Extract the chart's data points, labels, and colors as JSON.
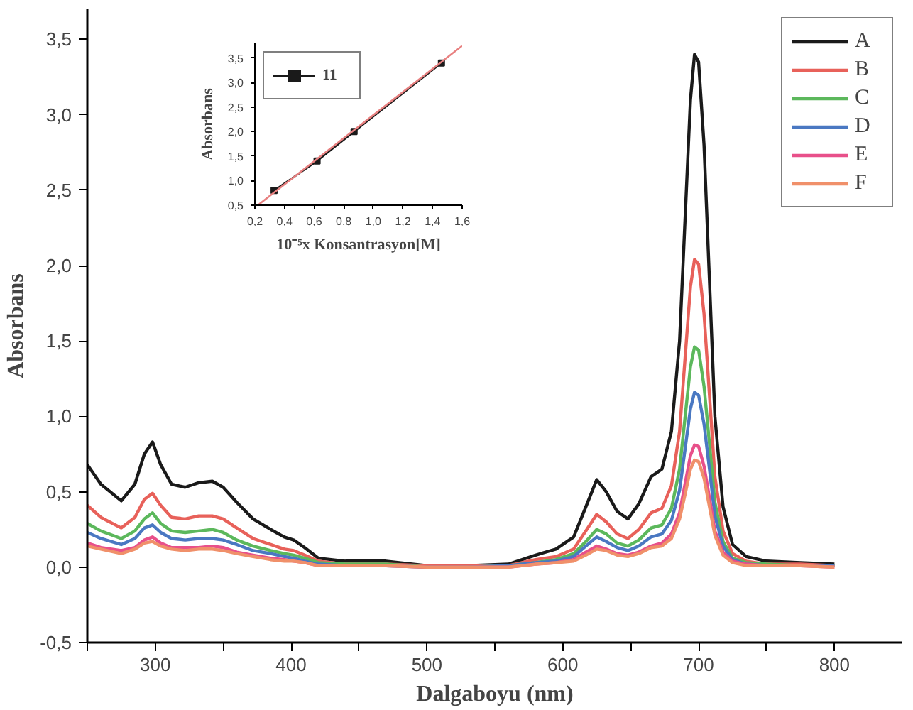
{
  "chart_data": [
    {
      "type": "line",
      "xlabel": "Dalgaboyu (nm)",
      "ylabel": "Absorbans",
      "xlim": [
        250,
        850
      ],
      "ylim": [
        -0.5,
        3.7
      ],
      "xticks": [
        {
          "value": 250,
          "label": null
        },
        300,
        {
          "value": 350,
          "label": null
        },
        400,
        {
          "value": 450,
          "label": null
        },
        500,
        {
          "value": 550,
          "label": null
        },
        600,
        {
          "value": 650,
          "label": null
        },
        700,
        {
          "value": 750,
          "label": null
        },
        800
      ],
      "yticks": [
        {
          "value": -0.5,
          "label": "-0,5"
        },
        {
          "value": 0,
          "label": "0,0"
        },
        {
          "value": 0.5,
          "label": "0,5"
        },
        {
          "value": 1,
          "label": "1,0"
        },
        {
          "value": 1.5,
          "label": "1,5"
        },
        {
          "value": 2,
          "label": "2,0"
        },
        {
          "value": 2.5,
          "label": "2,5"
        },
        {
          "value": 3,
          "label": "3,0"
        },
        {
          "value": 3.5,
          "label": "3,5"
        }
      ],
      "x": [
        250,
        260,
        275,
        285,
        292,
        298,
        304,
        312,
        322,
        332,
        342,
        350,
        360,
        372,
        385,
        395,
        402,
        410,
        420,
        440,
        470,
        500,
        530,
        560,
        580,
        595,
        608,
        617,
        625,
        632,
        640,
        648,
        656,
        665,
        673,
        680,
        686,
        690,
        694,
        697,
        700,
        704,
        708,
        712,
        718,
        725,
        735,
        750,
        775,
        800
      ],
      "legend": "top right",
      "grid": false,
      "marker": "none",
      "line_style": "solid",
      "series": [
        {
          "name": "A",
          "color": "#1a1a1a",
          "values": [
            0.68,
            0.55,
            0.44,
            0.55,
            0.75,
            0.83,
            0.68,
            0.55,
            0.53,
            0.56,
            0.57,
            0.53,
            0.43,
            0.32,
            0.25,
            0.2,
            0.18,
            0.13,
            0.06,
            0.04,
            0.04,
            0.01,
            0.01,
            0.02,
            0.08,
            0.12,
            0.2,
            0.4,
            0.58,
            0.5,
            0.37,
            0.32,
            0.42,
            0.6,
            0.65,
            0.9,
            1.5,
            2.3,
            3.1,
            3.4,
            3.35,
            2.8,
            1.9,
            1.0,
            0.4,
            0.15,
            0.07,
            0.04,
            0.03,
            0.02
          ]
        },
        {
          "name": "B",
          "color": "#e8615a",
          "values": [
            0.41,
            0.33,
            0.26,
            0.33,
            0.45,
            0.49,
            0.41,
            0.33,
            0.32,
            0.34,
            0.34,
            0.32,
            0.26,
            0.19,
            0.15,
            0.12,
            0.11,
            0.08,
            0.04,
            0.02,
            0.02,
            0.01,
            0.01,
            0.01,
            0.05,
            0.07,
            0.12,
            0.24,
            0.35,
            0.3,
            0.22,
            0.19,
            0.25,
            0.36,
            0.39,
            0.54,
            0.9,
            1.38,
            1.86,
            2.04,
            2.01,
            1.68,
            1.14,
            0.6,
            0.24,
            0.09,
            0.04,
            0.02,
            0.02,
            0.01
          ]
        },
        {
          "name": "C",
          "color": "#5cb85c",
          "values": [
            0.29,
            0.24,
            0.19,
            0.24,
            0.32,
            0.36,
            0.29,
            0.24,
            0.23,
            0.24,
            0.25,
            0.23,
            0.18,
            0.14,
            0.11,
            0.09,
            0.08,
            0.06,
            0.03,
            0.02,
            0.02,
            0.0,
            0.0,
            0.01,
            0.03,
            0.05,
            0.09,
            0.17,
            0.25,
            0.22,
            0.16,
            0.14,
            0.18,
            0.26,
            0.28,
            0.39,
            0.65,
            0.99,
            1.33,
            1.46,
            1.44,
            1.2,
            0.82,
            0.43,
            0.17,
            0.06,
            0.03,
            0.02,
            0.01,
            0.01
          ]
        },
        {
          "name": "D",
          "color": "#4a78c2",
          "values": [
            0.23,
            0.19,
            0.15,
            0.19,
            0.26,
            0.28,
            0.23,
            0.19,
            0.18,
            0.19,
            0.19,
            0.18,
            0.15,
            0.11,
            0.09,
            0.07,
            0.06,
            0.04,
            0.02,
            0.01,
            0.01,
            0.0,
            0.0,
            0.01,
            0.03,
            0.04,
            0.07,
            0.14,
            0.2,
            0.17,
            0.13,
            0.11,
            0.14,
            0.2,
            0.22,
            0.31,
            0.51,
            0.78,
            1.05,
            1.16,
            1.14,
            0.95,
            0.65,
            0.34,
            0.14,
            0.05,
            0.02,
            0.01,
            0.01,
            0.01
          ]
        },
        {
          "name": "E",
          "color": "#e8508a",
          "values": [
            0.16,
            0.13,
            0.11,
            0.13,
            0.18,
            0.2,
            0.16,
            0.13,
            0.13,
            0.13,
            0.14,
            0.13,
            0.1,
            0.08,
            0.06,
            0.05,
            0.04,
            0.03,
            0.01,
            0.01,
            0.01,
            0.0,
            0.0,
            0.0,
            0.02,
            0.03,
            0.05,
            0.1,
            0.14,
            0.12,
            0.09,
            0.08,
            0.1,
            0.14,
            0.16,
            0.22,
            0.36,
            0.55,
            0.74,
            0.81,
            0.8,
            0.67,
            0.46,
            0.24,
            0.1,
            0.04,
            0.02,
            0.01,
            0.01,
            0.0
          ]
        },
        {
          "name": "F",
          "color": "#f0906a",
          "values": [
            0.14,
            0.12,
            0.09,
            0.12,
            0.16,
            0.17,
            0.14,
            0.12,
            0.11,
            0.12,
            0.12,
            0.11,
            0.09,
            0.07,
            0.05,
            0.04,
            0.04,
            0.03,
            0.01,
            0.01,
            0.01,
            0.0,
            0.0,
            0.0,
            0.02,
            0.03,
            0.04,
            0.08,
            0.12,
            0.11,
            0.08,
            0.07,
            0.09,
            0.13,
            0.14,
            0.19,
            0.32,
            0.48,
            0.65,
            0.71,
            0.7,
            0.59,
            0.4,
            0.21,
            0.08,
            0.03,
            0.01,
            0.01,
            0.01,
            0.0
          ]
        }
      ]
    },
    {
      "type": "line",
      "xlabel": "10⁻⁵x Konsantrasyon[M]",
      "ylabel": "Absorbans",
      "xlim": [
        0.2,
        1.6
      ],
      "ylim": [
        0.5,
        3.8
      ],
      "xticks": [
        {
          "value": 0.2,
          "label": "0,2"
        },
        {
          "value": 0.4,
          "label": "0,4"
        },
        {
          "value": 0.6,
          "label": "0,6"
        },
        {
          "value": 0.8,
          "label": "0,8"
        },
        {
          "value": 1.0,
          "label": "1,0"
        },
        {
          "value": 1.2,
          "label": "1,2"
        },
        {
          "value": 1.4,
          "label": "1,4"
        },
        {
          "value": 1.6,
          "label": "1,6"
        }
      ],
      "yticks": [
        {
          "value": 0.5,
          "label": "0,5"
        },
        {
          "value": 1.0,
          "label": "1,0"
        },
        {
          "value": 1.5,
          "label": "1,5"
        },
        {
          "value": 2.0,
          "label": "2,0"
        },
        {
          "value": 2.5,
          "label": "2,5"
        },
        {
          "value": 3.0,
          "label": "3,0"
        },
        {
          "value": 3.5,
          "label": "3,5"
        }
      ],
      "x": [
        0.33,
        0.62,
        0.87,
        1.46
      ],
      "legend": "top left",
      "grid": false,
      "marker": "square",
      "line_style": "solid",
      "series": [
        {
          "name": "11",
          "color": "#1a1a1a",
          "values": [
            0.8,
            1.4,
            2.0,
            3.4
          ]
        },
        {
          "type": "line",
          "color": "#e88080",
          "x": [
            0.22,
            1.6
          ],
          "values": [
            0.5,
            3.75
          ],
          "marker": "none"
        }
      ]
    }
  ]
}
